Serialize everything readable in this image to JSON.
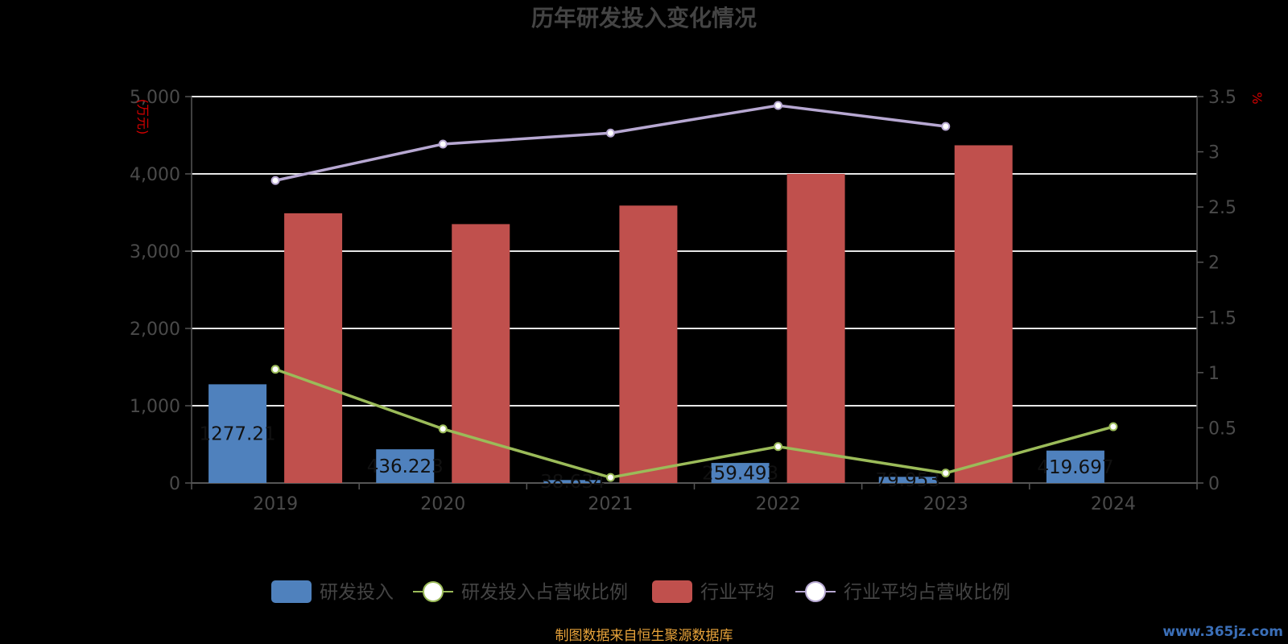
{
  "chart_data": {
    "type": "bar",
    "title": "历年研发投入变化情况",
    "categories": [
      "2019",
      "2020",
      "2021",
      "2022",
      "2023",
      "2024"
    ],
    "y_left": {
      "unit": "(万元)",
      "min": 0,
      "max": 5000,
      "ticks": [
        "0",
        "1,000",
        "2,000",
        "3,000",
        "4,000",
        "5,000"
      ]
    },
    "y_right": {
      "unit": "%",
      "min": 0,
      "max": 3.5,
      "ticks": [
        "0",
        "0.5",
        "1",
        "1.5",
        "2",
        "2.5",
        "3",
        "3.5"
      ]
    },
    "series": [
      {
        "name": "研发投入",
        "kind": "bar",
        "axis": "left",
        "color": "#4f81bd",
        "values": [
          1277.21,
          436.223,
          38.634,
          259.493,
          79.953,
          419.697
        ],
        "labels": [
          "1277.21",
          "436.223",
          "38.634",
          "259.493",
          "79.953",
          "419.697"
        ]
      },
      {
        "name": "研发投入占营收比例",
        "kind": "line",
        "axis": "right",
        "color": "#9bbb59",
        "values": [
          1.03,
          0.49,
          0.05,
          0.33,
          0.09,
          0.51
        ]
      },
      {
        "name": "行业平均",
        "kind": "bar",
        "axis": "left",
        "color": "#c0504d",
        "values": [
          3490,
          3350,
          3590,
          4000,
          4370,
          null
        ]
      },
      {
        "name": "行业平均占营收比例",
        "kind": "line",
        "axis": "right",
        "color": "#b7a8d2",
        "values": [
          2.74,
          3.07,
          3.17,
          3.42,
          3.23,
          null
        ]
      }
    ],
    "grid": true,
    "legend_position": "bottom"
  },
  "source_note": "制图数据来自恒生聚源数据库",
  "watermark": "www.365jz.com"
}
